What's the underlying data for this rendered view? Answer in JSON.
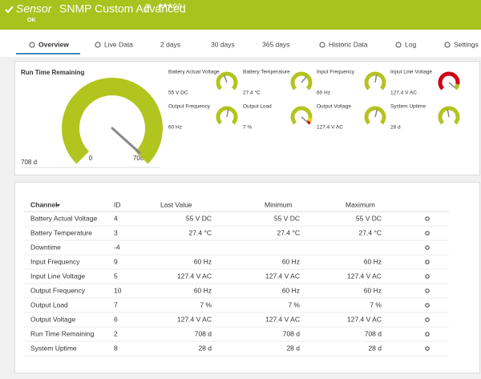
{
  "header": {
    "sensor_label": "Sensor",
    "title": "SNMP Custom Advanced",
    "status": "OK"
  },
  "tabs": [
    "Overview",
    "Live Data",
    "2 days",
    "30 days",
    "365 days",
    "Historic Data",
    "Log",
    "Settings"
  ],
  "main_gauge": {
    "title": "Run Time Remaining",
    "value": "708 d",
    "min_label": "0",
    "max_label": "708 d"
  },
  "gauges": [
    {
      "label": "Battery Actual Voltage",
      "value": "55 V DC"
    },
    {
      "label": "Battery Temperature",
      "value": "27.4 °C"
    },
    {
      "label": "Input Frequency",
      "value": "60 Hz"
    },
    {
      "label": "Input Line Voltage",
      "value": "127.4 V AC"
    },
    {
      "label": "Output Frequency",
      "value": "60 Hz"
    },
    {
      "label": "Output Load",
      "value": "7 %"
    },
    {
      "label": "Output Voltage",
      "value": "127.4 V AC"
    },
    {
      "label": "System Uptime",
      "value": "28 d"
    }
  ],
  "table": {
    "headers": [
      "Channel",
      "ID",
      "Last Value",
      "Minimum",
      "Maximum"
    ],
    "rows": [
      [
        "Battery Actual Voltage",
        4,
        "55 V DC",
        "55 V DC",
        "55 V DC"
      ],
      [
        "Battery Temperature",
        3,
        "27.4 °C",
        "27.4 °C",
        "27.4 °C"
      ],
      [
        "Downtime",
        -4,
        null,
        null,
        null
      ],
      [
        "Input Frequency",
        9,
        "60 Hz",
        "60 Hz",
        "60 Hz"
      ],
      [
        "Input Line Voltage",
        5,
        "127.4 V AC",
        "127.4 V AC",
        "127.4 V AC"
      ],
      [
        "Output Frequency",
        10,
        "60 Hz",
        "60 Hz",
        "60 Hz"
      ],
      [
        "Output Load",
        7,
        "7 %",
        "7 %",
        "7 %"
      ],
      [
        "Output Voltage",
        6,
        "127.4 V AC",
        "127.4 V AC",
        "127.4 V AC"
      ],
      [
        "Run Time Remaining",
        2,
        "708 d",
        "708 d",
        "708 d"
      ],
      [
        "System Uptime",
        8,
        "28 d",
        "28 d",
        "28 d"
      ]
    ]
  }
}
